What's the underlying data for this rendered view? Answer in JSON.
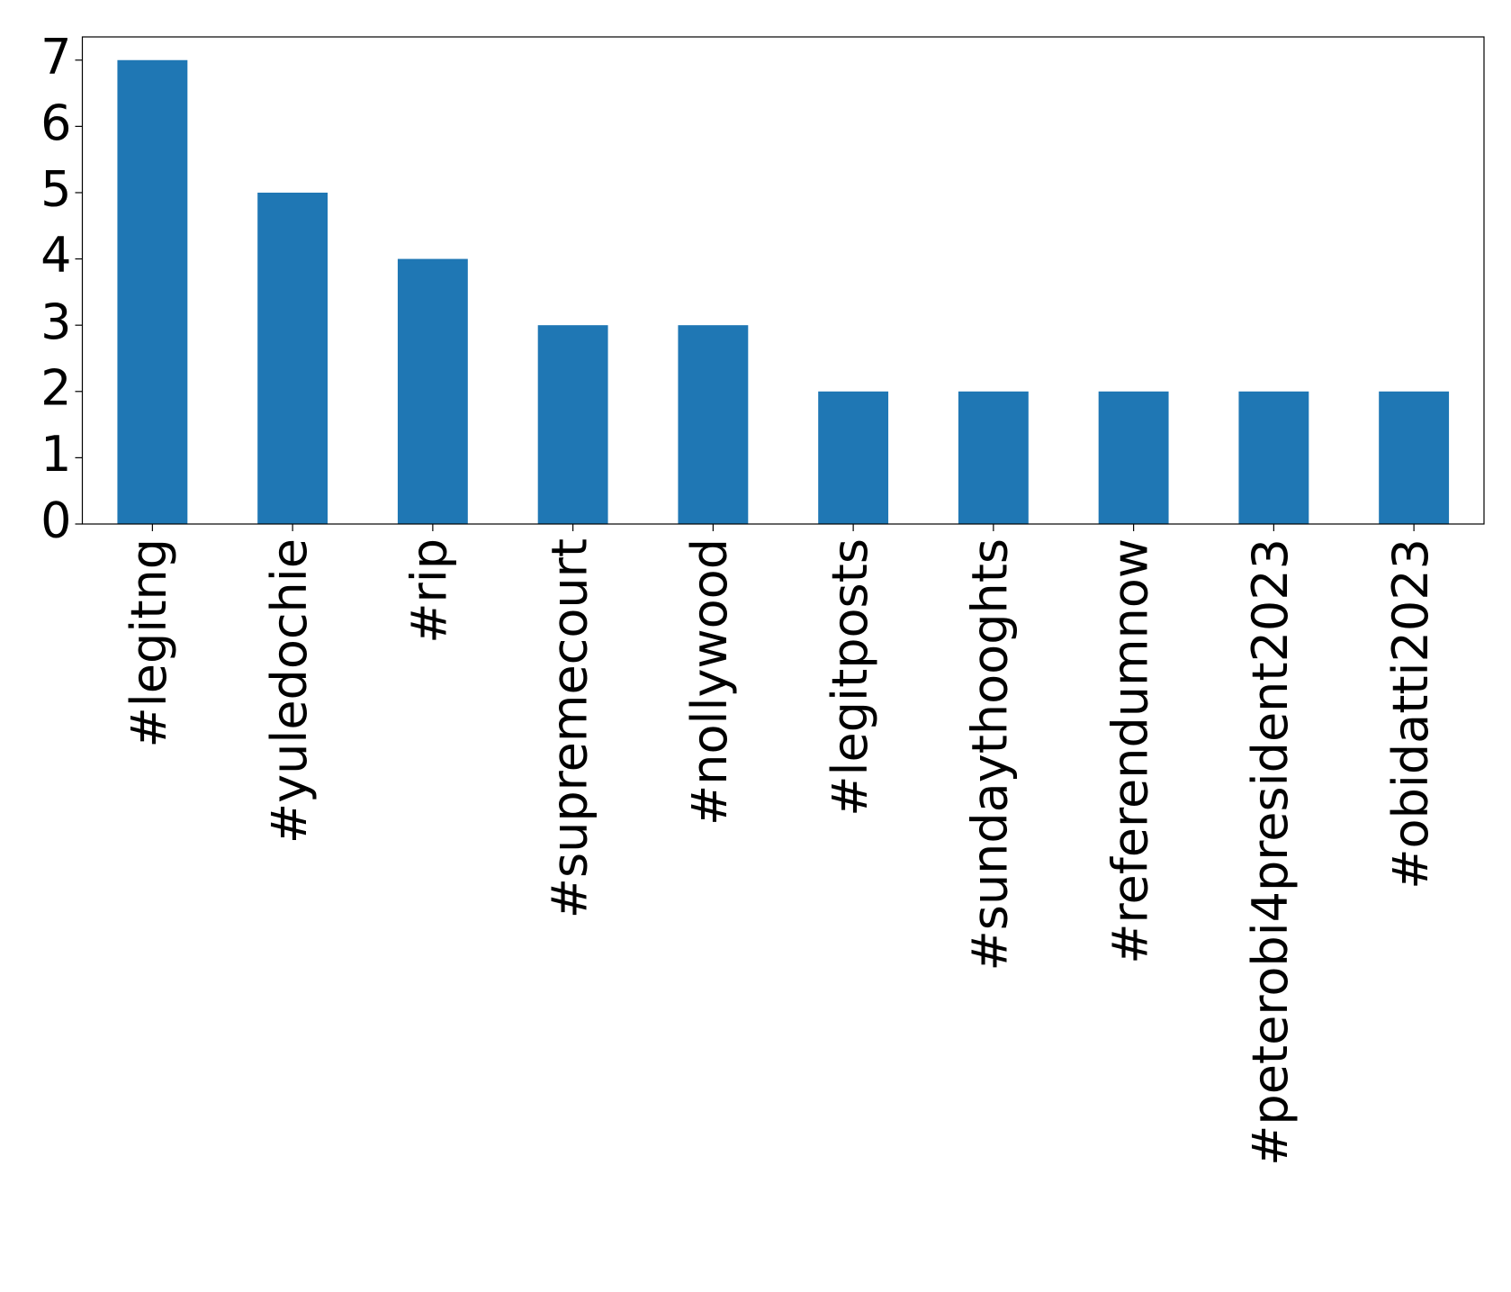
{
  "chart_data": {
    "type": "bar",
    "categories": [
      "#legitng",
      "#yuledochie",
      "#rip",
      "#supremecourt",
      "#nollywood",
      "#legitposts",
      "#sundaythooghts",
      "#referendumnow",
      "#peterobi4president2023",
      "#obidatti2023"
    ],
    "values": [
      7,
      5,
      4,
      3,
      3,
      2,
      2,
      2,
      2,
      2
    ],
    "color": "#1f77b4",
    "ylim": [
      0,
      7.35
    ],
    "yticks": [
      0,
      1,
      2,
      3,
      4,
      5,
      6,
      7
    ],
    "grid": false
  }
}
